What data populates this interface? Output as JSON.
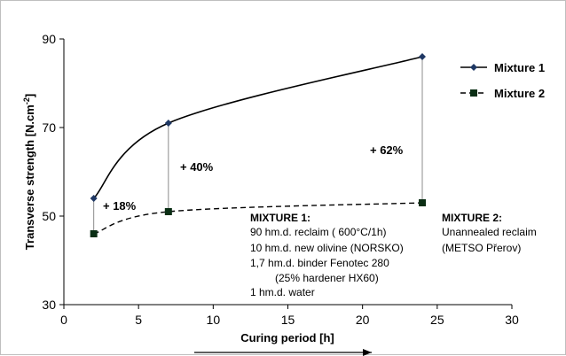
{
  "chart_data": {
    "type": "line",
    "xlabel": "Curing period [h]",
    "ylabel": "Transverse strength  [N.cm",
    "ylabel_sup": "-2",
    "ylabel_end": "]",
    "xlim": [
      0,
      30
    ],
    "ylim": [
      30,
      90
    ],
    "x_ticks": [
      0,
      5,
      10,
      15,
      20,
      25,
      30
    ],
    "y_ticks": [
      30,
      50,
      70,
      90
    ],
    "grid": false,
    "legend": "top-right",
    "series": [
      {
        "name": "Mixture 1",
        "x": [
          2,
          7,
          24
        ],
        "y": [
          54,
          71,
          86
        ],
        "color": "#1f3864",
        "style": "solid",
        "marker": "diamond"
      },
      {
        "name": "Mixture 2",
        "x": [
          2,
          7,
          24
        ],
        "y": [
          46,
          51,
          53
        ],
        "color": "#0a2e14",
        "style": "dashed",
        "marker": "square"
      }
    ],
    "annotations": [
      "+ 18%",
      "+ 40%",
      "+ 62%"
    ],
    "notes": {
      "mixture1_title": "MIXTURE 1:",
      "mixture1_lines": [
        "90  hm.d. reclaim ( 600°C/1h)",
        "10  hm.d. new olivine (NORSKO)",
        "1,7 hm.d. binder Fenotec 280",
        "(25% hardener HX60)",
        "1 hm.d.  water"
      ],
      "mixture2_title": "MIXTURE 2:",
      "mixture2_lines": [
        "Unannealed reclaim",
        "(METSO Přerov)"
      ]
    }
  }
}
